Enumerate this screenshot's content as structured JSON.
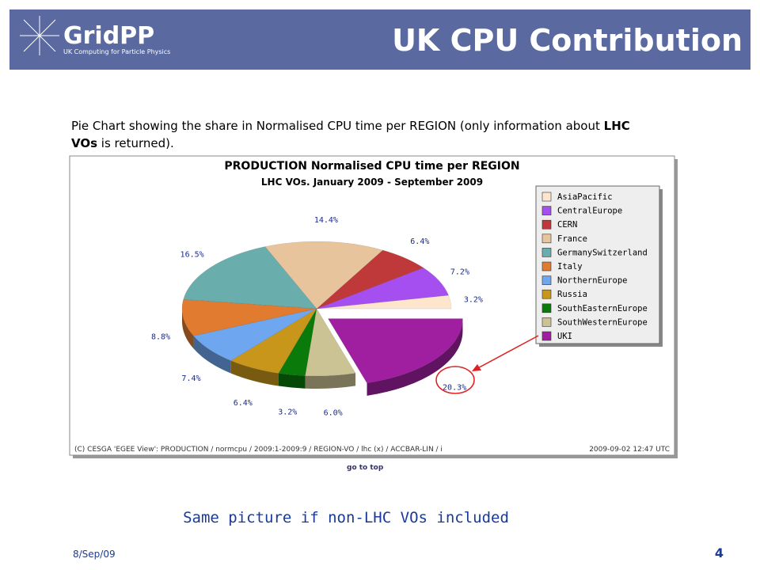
{
  "header": {
    "logo": "GridPP",
    "logo_subtitle": "UK Computing for Particle Physics",
    "title": "UK CPU Contribution"
  },
  "caption": {
    "part1": "Pie Chart showing the share in Normalised CPU time per REGION (only information about ",
    "bold1": "LHC",
    "bold2": "VOs",
    "part2": " is returned)."
  },
  "chart_data": {
    "type": "pie",
    "title": "PRODUCTION Normalised CPU time per REGION",
    "subtitle": "LHC VOs. January 2009 - September 2009",
    "categories": [
      "AsiaPacific",
      "CentralEurope",
      "CERN",
      "France",
      "GermanySwitzerland",
      "Italy",
      "NorthernEurope",
      "Russia",
      "SouthEasternEurope",
      "SouthWesternEurope",
      "UKI"
    ],
    "values": [
      3.2,
      7.2,
      6.4,
      14.4,
      16.5,
      8.8,
      7.4,
      6.4,
      3.2,
      6.0,
      20.3
    ],
    "value_labels": [
      "3.2%",
      "7.2%",
      "6.4%",
      "14.4%",
      "16.5%",
      "8.8%",
      "7.4%",
      "6.4%",
      "3.2%",
      "6.0%",
      "20.3%"
    ],
    "colors": [
      "#fde6cc",
      "#a64ff0",
      "#c0393a",
      "#e8c49c",
      "#6aadad",
      "#e07b30",
      "#6fa6f0",
      "#c8961a",
      "#0a7a0a",
      "#cbc394",
      "#a01fa0"
    ],
    "exploded": "UKI"
  },
  "chart_footer": {
    "credit": "(C) CESGA 'EGEE View': PRODUCTION / normcpu / 2009:1-2009:9 / REGION-VO / lhc (x) / ACCBAR-LIN / i",
    "timestamp": "2009-09-02 12:47 UTC"
  },
  "go_to_top": "go to top",
  "note": "Same picture if non-LHC VOs included",
  "footer": {
    "date": "8/Sep/09",
    "page": "4"
  }
}
